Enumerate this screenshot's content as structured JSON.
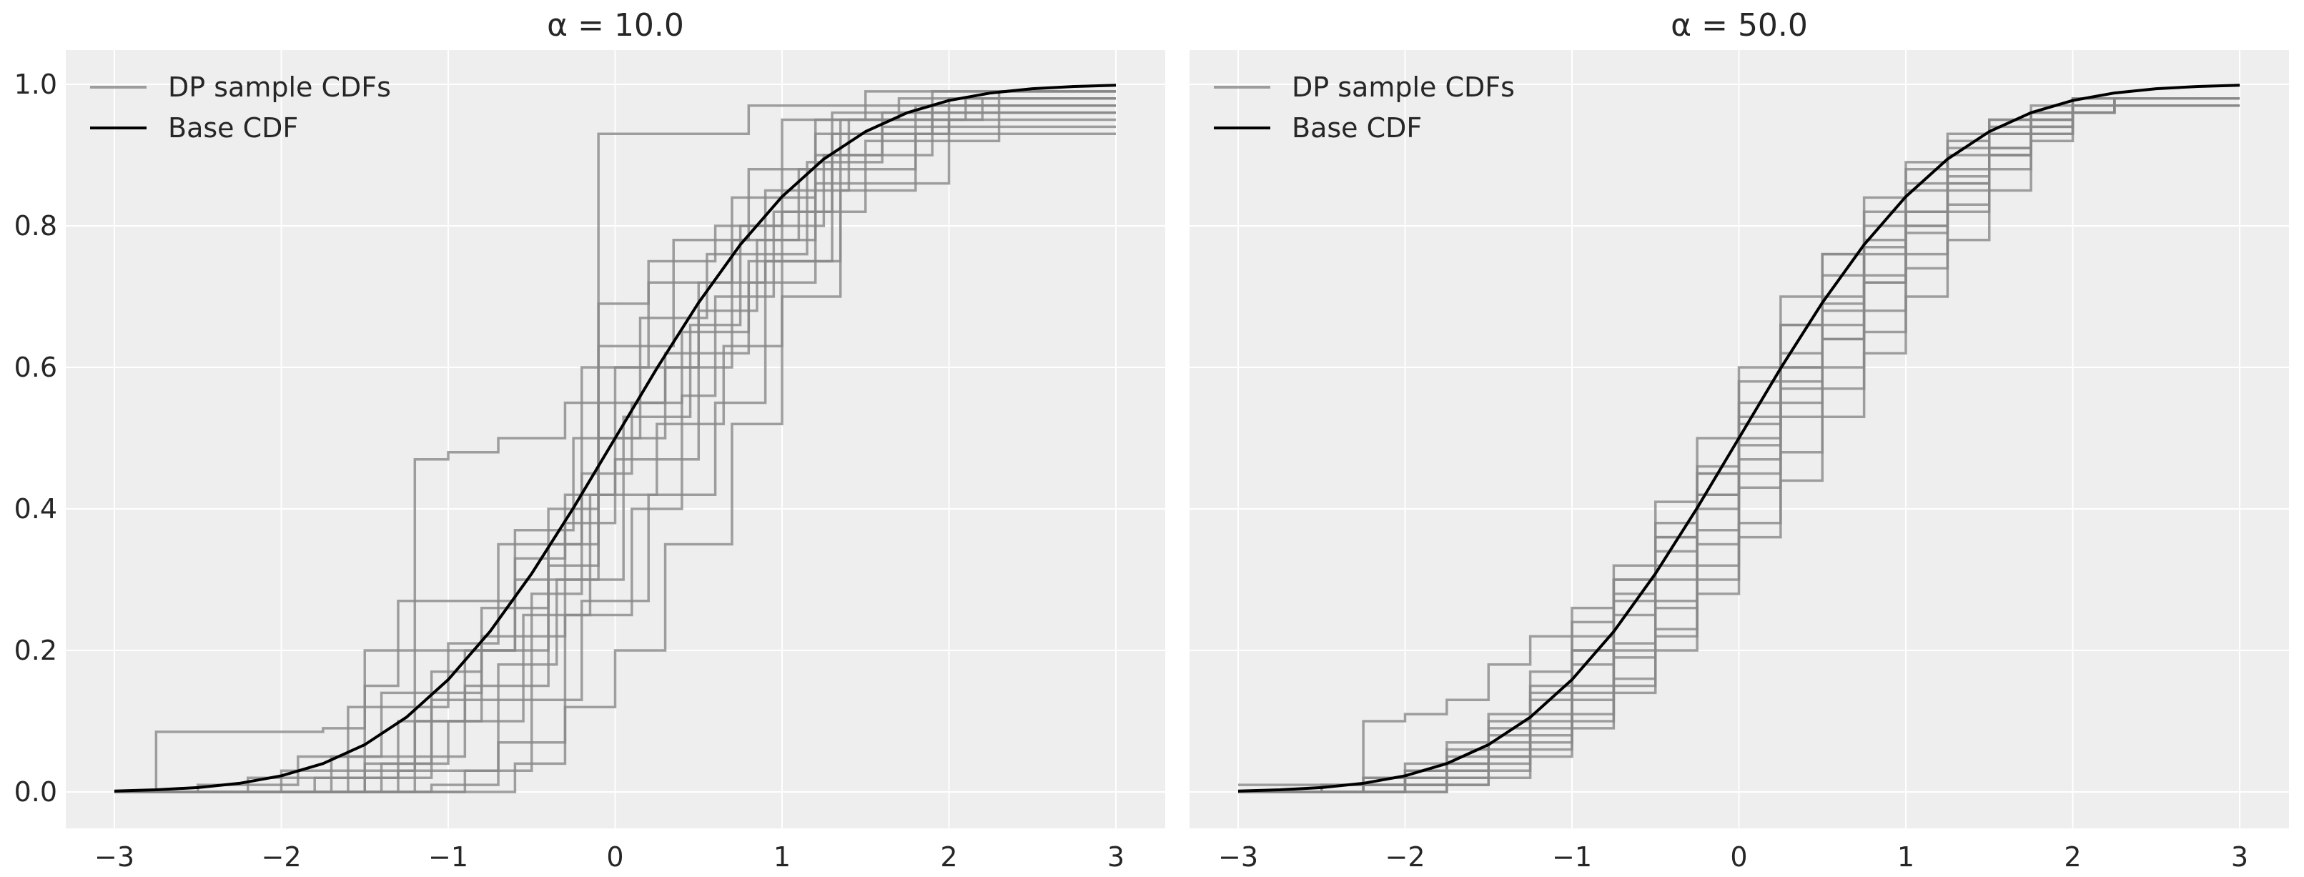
{
  "chart_data": [
    {
      "type": "line",
      "title": "α = 10.0",
      "xlabel": "",
      "ylabel": "",
      "xlim": [
        -3.3,
        3.3
      ],
      "ylim": [
        -0.05,
        1.05
      ],
      "xticks": [
        "−3",
        "−2",
        "−1",
        "0",
        "1",
        "2",
        "3"
      ],
      "yticks": [
        "0.0",
        "0.2",
        "0.4",
        "0.6",
        "0.8",
        "1.0"
      ],
      "grid": true,
      "legend": {
        "placement": "top-left",
        "entries": [
          "DP sample CDFs",
          "Base CDF"
        ]
      },
      "colors": {
        "samples": "#888888",
        "base": "#000000",
        "background": "#eeeeee"
      },
      "base_cdf": {
        "x": [
          -3,
          -2.75,
          -2.5,
          -2.25,
          -2,
          -1.75,
          -1.5,
          -1.25,
          -1,
          -0.75,
          -0.5,
          -0.25,
          0,
          0.25,
          0.5,
          0.75,
          1,
          1.25,
          1.5,
          1.75,
          2,
          2.25,
          2.5,
          2.75,
          3
        ],
        "y": [
          0.0013,
          0.003,
          0.0062,
          0.0122,
          0.0228,
          0.0401,
          0.0668,
          0.1056,
          0.1587,
          0.2266,
          0.3085,
          0.4013,
          0.5,
          0.5987,
          0.6915,
          0.7734,
          0.8413,
          0.8944,
          0.9332,
          0.9599,
          0.9772,
          0.9878,
          0.9938,
          0.997,
          0.9987
        ]
      },
      "sample_cdfs": [
        [
          [
            -3,
            0
          ],
          [
            -2.75,
            0.085
          ],
          [
            -1.75,
            0.09
          ],
          [
            -1.5,
            0.2
          ],
          [
            -1.2,
            0.47
          ],
          [
            -1.0,
            0.48
          ],
          [
            -0.7,
            0.5
          ],
          [
            -0.3,
            0.55
          ],
          [
            -0.1,
            0.93
          ],
          [
            0.8,
            0.97
          ],
          [
            1.5,
            0.99
          ]
        ],
        [
          [
            -3,
            0
          ],
          [
            -1.5,
            0.15
          ],
          [
            -1.3,
            0.27
          ],
          [
            -0.6,
            0.3
          ],
          [
            -0.1,
            0.55
          ],
          [
            0.3,
            0.6
          ],
          [
            0.7,
            0.78
          ],
          [
            1.2,
            0.86
          ],
          [
            2.0,
            0.95
          ],
          [
            2.1,
            0.98
          ]
        ],
        [
          [
            -3,
            0
          ],
          [
            -2.0,
            0.03
          ],
          [
            -1.2,
            0.1
          ],
          [
            -0.8,
            0.2
          ],
          [
            -0.4,
            0.35
          ],
          [
            -0.1,
            0.69
          ],
          [
            0.2,
            0.75
          ],
          [
            0.6,
            0.8
          ],
          [
            1.0,
            0.95
          ],
          [
            1.5,
            0.97
          ]
        ],
        [
          [
            -3,
            0
          ],
          [
            -1.4,
            0.04
          ],
          [
            -1.1,
            0.13
          ],
          [
            -0.5,
            0.28
          ],
          [
            -0.2,
            0.45
          ],
          [
            0.1,
            0.55
          ],
          [
            0.4,
            0.65
          ],
          [
            0.8,
            0.75
          ],
          [
            1.3,
            0.93
          ],
          [
            2.0,
            0.98
          ]
        ],
        [
          [
            -3,
            0
          ],
          [
            -1.8,
            0.02
          ],
          [
            -1.3,
            0.1
          ],
          [
            -0.9,
            0.2
          ],
          [
            -0.6,
            0.33
          ],
          [
            -0.3,
            0.42
          ],
          [
            0,
            0.6
          ],
          [
            0.5,
            0.72
          ],
          [
            0.9,
            0.85
          ],
          [
            1.4,
            0.95
          ]
        ],
        [
          [
            -3,
            0
          ],
          [
            -1.1,
            0.01
          ],
          [
            -0.7,
            0.07
          ],
          [
            -0.3,
            0.25
          ],
          [
            0.1,
            0.4
          ],
          [
            0.4,
            0.56
          ],
          [
            0.6,
            0.7
          ],
          [
            0.95,
            0.82
          ],
          [
            1.3,
            0.96
          ]
        ],
        [
          [
            -3,
            0
          ],
          [
            -2.2,
            0.02
          ],
          [
            -1.6,
            0.12
          ],
          [
            -1.0,
            0.21
          ],
          [
            -0.7,
            0.35
          ],
          [
            -0.2,
            0.6
          ],
          [
            0.2,
            0.72
          ],
          [
            0.7,
            0.84
          ],
          [
            1.2,
            0.93
          ],
          [
            1.9,
            0.99
          ]
        ],
        [
          [
            -3,
            0
          ],
          [
            -1.2,
            0.05
          ],
          [
            -0.9,
            0.15
          ],
          [
            -0.4,
            0.32
          ],
          [
            -0.1,
            0.5
          ],
          [
            0.3,
            0.62
          ],
          [
            0.8,
            0.72
          ],
          [
            1.2,
            0.9
          ],
          [
            1.6,
            0.96
          ]
        ],
        [
          [
            -3,
            0
          ],
          [
            -1.6,
            0.02
          ],
          [
            -1.1,
            0.17
          ],
          [
            -0.8,
            0.22
          ],
          [
            -0.3,
            0.38
          ],
          [
            0.0,
            0.47
          ],
          [
            0.5,
            0.68
          ],
          [
            0.85,
            0.78
          ],
          [
            1.1,
            0.88
          ],
          [
            1.8,
            0.97
          ]
        ],
        [
          [
            -3,
            0
          ],
          [
            -0.9,
            0.03
          ],
          [
            -0.5,
            0.13
          ],
          [
            -0.2,
            0.27
          ],
          [
            0.2,
            0.42
          ],
          [
            0.6,
            0.55
          ],
          [
            0.9,
            0.75
          ],
          [
            1.35,
            0.95
          ],
          [
            2.2,
            0.98
          ]
        ],
        [
          [
            -3,
            0
          ],
          [
            -2.5,
            0.01
          ],
          [
            -1.9,
            0.05
          ],
          [
            -1.4,
            0.14
          ],
          [
            -0.8,
            0.26
          ],
          [
            -0.4,
            0.4
          ],
          [
            -0.1,
            0.63
          ],
          [
            0.35,
            0.78
          ],
          [
            0.8,
            0.88
          ],
          [
            1.2,
            0.95
          ],
          [
            1.7,
            0.98
          ]
        ],
        [
          [
            -3,
            0
          ],
          [
            -1.3,
            0.03
          ],
          [
            -0.7,
            0.18
          ],
          [
            -0.35,
            0.3
          ],
          [
            0.05,
            0.53
          ],
          [
            0.45,
            0.66
          ],
          [
            0.75,
            0.8
          ],
          [
            1.25,
            0.9
          ],
          [
            1.9,
            0.97
          ]
        ],
        [
          [
            -3,
            0
          ],
          [
            -1.5,
            0.04
          ],
          [
            -1.0,
            0.1
          ],
          [
            -0.55,
            0.25
          ],
          [
            -0.15,
            0.42
          ],
          [
            0.25,
            0.52
          ],
          [
            0.65,
            0.63
          ],
          [
            1.0,
            0.82
          ],
          [
            1.5,
            0.92
          ],
          [
            2.3,
            0.99
          ]
        ],
        [
          [
            -3,
            0
          ],
          [
            -1.7,
            0.05
          ],
          [
            -1.2,
            0.2
          ],
          [
            -0.6,
            0.37
          ],
          [
            -0.25,
            0.5
          ],
          [
            0.15,
            0.67
          ],
          [
            0.55,
            0.76
          ],
          [
            1.15,
            0.89
          ],
          [
            1.6,
            0.94
          ]
        ],
        [
          [
            -3,
            0
          ],
          [
            -0.6,
            0.04
          ],
          [
            -0.3,
            0.12
          ],
          [
            0.0,
            0.2
          ],
          [
            0.3,
            0.35
          ],
          [
            0.7,
            0.52
          ],
          [
            1.0,
            0.7
          ],
          [
            1.35,
            0.85
          ],
          [
            1.8,
            0.93
          ]
        ]
      ]
    },
    {
      "type": "line",
      "title": "α = 50.0",
      "xlabel": "",
      "ylabel": "",
      "xlim": [
        -3.3,
        3.3
      ],
      "ylim": [
        -0.05,
        1.05
      ],
      "xticks": [
        "−3",
        "−2",
        "−1",
        "0",
        "1",
        "2",
        "3"
      ],
      "yticks": [],
      "grid": true,
      "legend": {
        "placement": "top-left",
        "entries": [
          "DP sample CDFs",
          "Base CDF"
        ]
      },
      "colors": {
        "samples": "#888888",
        "base": "#000000",
        "background": "#eeeeee"
      },
      "base_cdf": {
        "x": [
          -3,
          -2.75,
          -2.5,
          -2.25,
          -2,
          -1.75,
          -1.5,
          -1.25,
          -1,
          -0.75,
          -0.5,
          -0.25,
          0,
          0.25,
          0.5,
          0.75,
          1,
          1.25,
          1.5,
          1.75,
          2,
          2.25,
          2.5,
          2.75,
          3
        ],
        "y": [
          0.0013,
          0.003,
          0.0062,
          0.0122,
          0.0228,
          0.0401,
          0.0668,
          0.1056,
          0.1587,
          0.2266,
          0.3085,
          0.4013,
          0.5,
          0.5987,
          0.6915,
          0.7734,
          0.8413,
          0.8944,
          0.9332,
          0.9599,
          0.9772,
          0.9878,
          0.9938,
          0.997,
          0.9987
        ]
      },
      "sample_x": [
        -3,
        -2.75,
        -2.5,
        -2.25,
        -2,
        -1.75,
        -1.5,
        -1.25,
        -1,
        -0.75,
        -0.5,
        -0.25,
        0,
        0.25,
        0.5,
        0.75,
        1,
        1.25,
        1.5,
        1.75,
        2,
        2.25,
        2.5,
        2.75,
        3
      ],
      "sample_y": [
        [
          0.01,
          0.01,
          0.01,
          0.1,
          0.11,
          0.13,
          0.18,
          0.22,
          0.26,
          0.3,
          0.36,
          0.45,
          0.52,
          0.6,
          0.66,
          0.73,
          0.8,
          0.86,
          0.9,
          0.93,
          0.96,
          0.97,
          0.97,
          0.97,
          0.97
        ],
        [
          0,
          0,
          0,
          0.01,
          0.02,
          0.04,
          0.07,
          0.1,
          0.15,
          0.2,
          0.26,
          0.35,
          0.45,
          0.55,
          0.64,
          0.72,
          0.8,
          0.86,
          0.91,
          0.95,
          0.97,
          0.98,
          0.98,
          0.98,
          0.98
        ],
        [
          0,
          0,
          0.01,
          0.02,
          0.04,
          0.07,
          0.1,
          0.15,
          0.22,
          0.3,
          0.38,
          0.45,
          0.55,
          0.66,
          0.76,
          0.82,
          0.88,
          0.92,
          0.95,
          0.96,
          0.97,
          0.98,
          0.98,
          0.98,
          0.98
        ],
        [
          0,
          0,
          0,
          0,
          0.01,
          0.02,
          0.04,
          0.07,
          0.11,
          0.16,
          0.22,
          0.3,
          0.38,
          0.48,
          0.57,
          0.65,
          0.74,
          0.83,
          0.9,
          0.94,
          0.96,
          0.97,
          0.97,
          0.97,
          0.97
        ],
        [
          0,
          0,
          0,
          0.01,
          0.03,
          0.05,
          0.09,
          0.14,
          0.2,
          0.28,
          0.36,
          0.46,
          0.6,
          0.7,
          0.76,
          0.84,
          0.89,
          0.93,
          0.95,
          0.97,
          0.98,
          0.98,
          0.98,
          0.98,
          0.98
        ],
        [
          0,
          0,
          0,
          0,
          0,
          0.01,
          0.03,
          0.06,
          0.1,
          0.14,
          0.2,
          0.28,
          0.36,
          0.44,
          0.53,
          0.62,
          0.7,
          0.78,
          0.85,
          0.92,
          0.96,
          0.97,
          0.97,
          0.97,
          0.97
        ],
        [
          0,
          0,
          0,
          0.01,
          0.02,
          0.03,
          0.06,
          0.11,
          0.18,
          0.25,
          0.32,
          0.4,
          0.49,
          0.57,
          0.64,
          0.72,
          0.79,
          0.85,
          0.9,
          0.94,
          0.96,
          0.98,
          0.98,
          0.98,
          0.98
        ],
        [
          0,
          0,
          0.01,
          0.02,
          0.03,
          0.06,
          0.11,
          0.17,
          0.24,
          0.32,
          0.41,
          0.5,
          0.58,
          0.66,
          0.73,
          0.8,
          0.86,
          0.91,
          0.94,
          0.96,
          0.97,
          0.98,
          0.98,
          0.98,
          0.98
        ],
        [
          0,
          0,
          0,
          0,
          0.01,
          0.02,
          0.05,
          0.08,
          0.13,
          0.19,
          0.27,
          0.37,
          0.47,
          0.58,
          0.69,
          0.78,
          0.85,
          0.9,
          0.93,
          0.95,
          0.97,
          0.98,
          0.98,
          0.98,
          0.98
        ],
        [
          0,
          0,
          0,
          0,
          0.01,
          0.03,
          0.05,
          0.09,
          0.14,
          0.21,
          0.3,
          0.42,
          0.53,
          0.62,
          0.7,
          0.77,
          0.82,
          0.87,
          0.91,
          0.95,
          0.97,
          0.97,
          0.97,
          0.97,
          0.97
        ],
        [
          0,
          0,
          0,
          0.01,
          0.02,
          0.04,
          0.08,
          0.13,
          0.2,
          0.27,
          0.34,
          0.42,
          0.5,
          0.6,
          0.68,
          0.76,
          0.82,
          0.88,
          0.93,
          0.96,
          0.98,
          0.98,
          0.98,
          0.98,
          0.98
        ],
        [
          0,
          0,
          0,
          0,
          0,
          0.01,
          0.02,
          0.05,
          0.09,
          0.15,
          0.23,
          0.32,
          0.43,
          0.53,
          0.6,
          0.68,
          0.76,
          0.82,
          0.88,
          0.93,
          0.96,
          0.97,
          0.97,
          0.97,
          0.97
        ]
      ]
    }
  ]
}
